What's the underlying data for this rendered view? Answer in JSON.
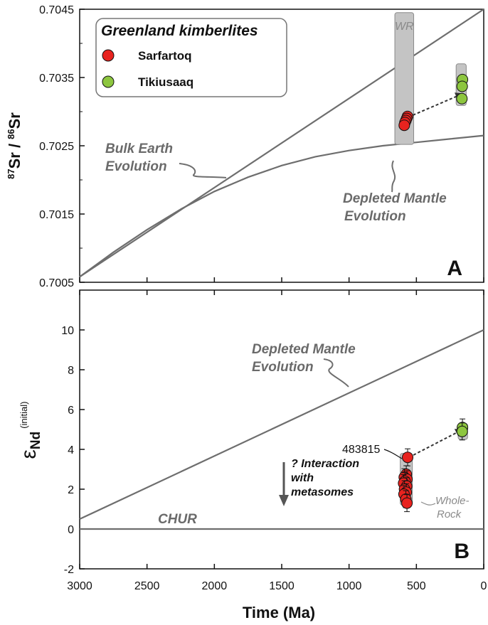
{
  "chart_data": [
    {
      "panel": "A",
      "type": "line",
      "ylabel": "87Sr / 86Sr",
      "xlabel": "",
      "xlim": [
        3000,
        0
      ],
      "ylim": [
        0.7005,
        0.7045
      ],
      "yticks": [
        "0.7045",
        "0.7035",
        "0.7025",
        "0.7015",
        "0.7005"
      ],
      "grid": false,
      "series": [
        {
          "name": "Bulk Earth Evolution",
          "x": [
            3000,
            0
          ],
          "y": [
            0.70058,
            0.7045
          ]
        },
        {
          "name": "Depleted Mantle Evolution",
          "x": [
            3000,
            2750,
            2500,
            2250,
            2000,
            1750,
            1500,
            1250,
            1000,
            750,
            500,
            250,
            0
          ],
          "y": [
            0.70058,
            0.70094,
            0.70127,
            0.70157,
            0.70183,
            0.70204,
            0.70221,
            0.70234,
            0.70243,
            0.7025,
            0.70255,
            0.7026,
            0.70265
          ]
        }
      ],
      "points": [
        {
          "group": "Sarfartoq",
          "x": 566,
          "y": 0.70293
        },
        {
          "group": "Sarfartoq",
          "x": 572,
          "y": 0.7029
        },
        {
          "group": "Sarfartoq",
          "x": 578,
          "y": 0.70287
        },
        {
          "group": "Sarfartoq",
          "x": 585,
          "y": 0.70284
        },
        {
          "group": "Sarfartoq",
          "x": 590,
          "y": 0.7028
        },
        {
          "group": "Tikiusaaq",
          "x": 158,
          "y": 0.70347
        },
        {
          "group": "Tikiusaaq",
          "x": 160,
          "y": 0.70337
        },
        {
          "group": "Tikiusaaq",
          "x": 162,
          "y": 0.70319
        }
      ],
      "boxes": [
        {
          "label": "WR",
          "x": [
            520,
            660
          ],
          "y": [
            0.70252,
            0.70445
          ]
        },
        {
          "label": "",
          "x": [
            130,
            205
          ],
          "y": [
            0.70309,
            0.7037
          ]
        }
      ],
      "arrow": {
        "from": [
          560,
          0.70292
        ],
        "to": [
          170,
          0.70325
        ]
      },
      "legend": {
        "title": "Greenland kimberlites",
        "placement": "top-left",
        "entries": [
          {
            "label": "Sarfartoq",
            "color": "#e8231f"
          },
          {
            "label": "Tikiusaaq",
            "color": "#8dc63f"
          }
        ]
      },
      "annotations": {
        "bulk_earth": [
          "Bulk Earth",
          "Evolution"
        ],
        "depleted": [
          "Depleted Mantle",
          "Evolution"
        ]
      },
      "panel_label": "A"
    },
    {
      "panel": "B",
      "type": "line",
      "ylabel": "εNd (initial)",
      "xlabel": "Time (Ma)",
      "xlim": [
        3000,
        0
      ],
      "ylim": [
        -2,
        12
      ],
      "xticks": [
        "3000",
        "2500",
        "2000",
        "1500",
        "1000",
        "500",
        "0"
      ],
      "yticks": [
        "-2",
        "0",
        "2",
        "4",
        "6",
        "8",
        "10"
      ],
      "grid": false,
      "series": [
        {
          "name": "Depleted Mantle Evolution",
          "x": [
            3000,
            0
          ],
          "y": [
            0.5,
            10.0
          ]
        },
        {
          "name": "CHUR",
          "x": [
            3000,
            0
          ],
          "y": [
            0,
            0
          ]
        }
      ],
      "points": [
        {
          "group": "Sarfartoq",
          "x": 565,
          "y": 3.6,
          "label": "483815"
        },
        {
          "group": "Sarfartoq",
          "x": 575,
          "y": 2.75
        },
        {
          "group": "Sarfartoq",
          "x": 590,
          "y": 2.6
        },
        {
          "group": "Sarfartoq",
          "x": 570,
          "y": 2.5
        },
        {
          "group": "Sarfartoq",
          "x": 585,
          "y": 2.4
        },
        {
          "group": "Sarfartoq",
          "x": 595,
          "y": 2.3
        },
        {
          "group": "Sarfartoq",
          "x": 572,
          "y": 2.15
        },
        {
          "group": "Sarfartoq",
          "x": 588,
          "y": 2.0
        },
        {
          "group": "Sarfartoq",
          "x": 575,
          "y": 1.85
        },
        {
          "group": "Sarfartoq",
          "x": 592,
          "y": 1.75
        },
        {
          "group": "Sarfartoq",
          "x": 578,
          "y": 1.5
        },
        {
          "group": "Sarfartoq",
          "x": 570,
          "y": 1.3
        },
        {
          "group": "Tikiusaaq",
          "x": 158,
          "y": 5.1
        },
        {
          "group": "Tikiusaaq",
          "x": 160,
          "y": 4.9
        }
      ],
      "boxes": [
        {
          "label": "Whole-Rock",
          "x": [
            530,
            620
          ],
          "y": [
            1.2,
            3.8
          ]
        },
        {
          "label": "",
          "x": [
            120,
            190
          ],
          "y": [
            4.5,
            5.3
          ]
        }
      ],
      "arrow": {
        "from": [
          555,
          3.6
        ],
        "to": [
          170,
          4.95
        ]
      },
      "annotations": {
        "depleted": [
          "Depleted Mantle",
          "Evolution"
        ],
        "chur": "CHUR",
        "interaction": [
          "? Interaction",
          "with",
          "metasomes"
        ],
        "whole_rock": [
          "Whole-",
          "Rock"
        ]
      },
      "panel_label": "B"
    }
  ],
  "colors": {
    "axis": "#111111",
    "curve": "#6e6e6e",
    "box": "#c4c4c4",
    "box_stroke": "#8a8a8a",
    "sarfartoq": "#e8231f",
    "tikiusaaq": "#8dc63f"
  }
}
